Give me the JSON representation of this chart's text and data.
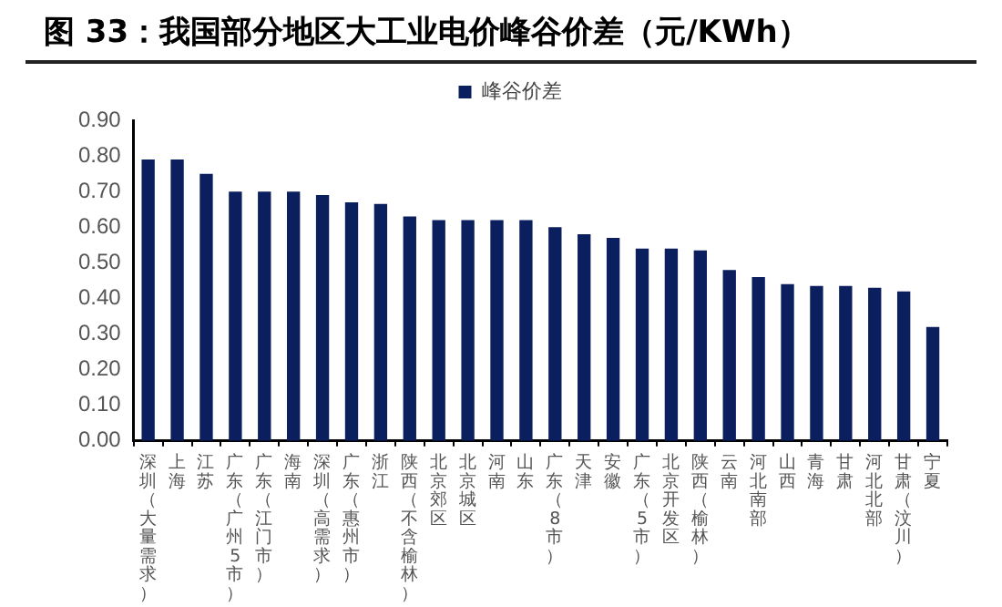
{
  "chart_data": {
    "type": "bar",
    "title": "图 33：我国部分地区大工业电价峰谷价差（元/KWh）",
    "categories": [
      "深圳（大量需求）",
      "上海",
      "江苏",
      "广东（广州5市）",
      "广东（江门市）",
      "海南",
      "深圳（高需求）",
      "广东（惠州市）",
      "浙江",
      "陕西（不含榆林）",
      "北京郊区",
      "北京城区",
      "河南",
      "山东",
      "广东（8市）",
      "天津",
      "安徽",
      "广东（5市）",
      "北京开发区",
      "陕西（榆林）",
      "云南",
      "河北南部",
      "山西",
      "青海",
      "甘肃",
      "河北北部",
      "甘肃（汶川）",
      "宁夏"
    ],
    "series": [
      {
        "name": "峰谷价差",
        "color": "#0b1f5e",
        "values": [
          0.79,
          0.79,
          0.75,
          0.7,
          0.7,
          0.7,
          0.69,
          0.67,
          0.665,
          0.63,
          0.62,
          0.62,
          0.62,
          0.62,
          0.6,
          0.58,
          0.57,
          0.54,
          0.54,
          0.535,
          0.48,
          0.46,
          0.44,
          0.435,
          0.435,
          0.43,
          0.42,
          0.32
        ]
      }
    ],
    "ylim": [
      0,
      0.9
    ],
    "yticks": [
      {
        "value": 0,
        "label": "0.00"
      },
      {
        "value": 0.1,
        "label": "0.10"
      },
      {
        "value": 0.2,
        "label": "0.20"
      },
      {
        "value": 0.3,
        "label": "0.30"
      },
      {
        "value": 0.4,
        "label": "0.40"
      },
      {
        "value": 0.5,
        "label": "0.50"
      },
      {
        "value": 0.6,
        "label": "0.60"
      },
      {
        "value": 0.7,
        "label": "0.70"
      },
      {
        "value": 0.8,
        "label": "0.80"
      },
      {
        "value": 0.9,
        "label": "0.90"
      }
    ],
    "legend": "top"
  }
}
